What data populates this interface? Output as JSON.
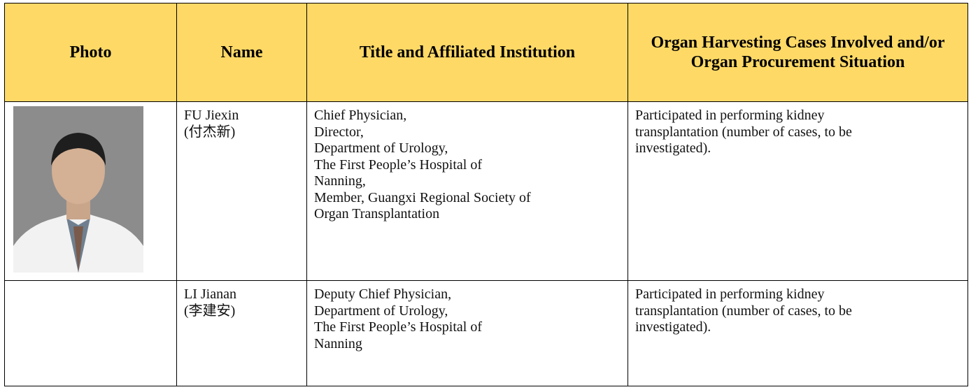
{
  "table": {
    "header": [
      "Photo",
      "Name",
      "Title and Affiliated Institution",
      "Organ Harvesting Cases Involved and/or Organ Procurement Situation"
    ],
    "rows": [
      {
        "name": [
          "FU Jiexin",
          "(付杰新)"
        ],
        "title": [
          "Chief Physician,",
          "Director,",
          "Department of Urology,",
          "The First People’s Hospital of",
          "Nanning,",
          "Member, Guangxi Regional Society of",
          "Organ Transplantation"
        ],
        "cases": [
          "Participated in performing kidney",
          "transplantation (number of cases, to be",
          "investigated)."
        ]
      },
      {
        "name": [
          "LI Jianan",
          "(李建安)"
        ],
        "title": [
          "Deputy Chief Physician,",
          "Department of Urology,",
          "The First People’s Hospital of",
          "Nanning"
        ],
        "cases": [
          "Participated in performing kidney",
          "transplantation (number of cases, to be",
          "investigated)."
        ]
      }
    ]
  }
}
